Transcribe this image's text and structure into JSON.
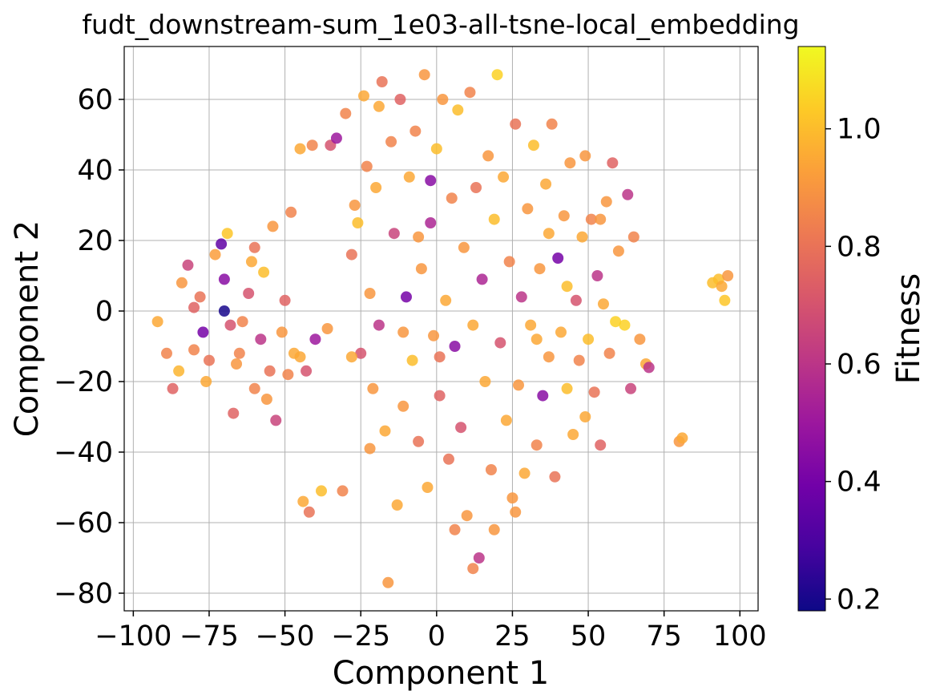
{
  "chart_data": {
    "type": "scatter",
    "title": "fudt_downstream-sum_1e03-all-tsne-local_embedding",
    "xlabel": "Component 1",
    "ylabel": "Component 2",
    "xlim": [
      -103,
      106
    ],
    "ylim": [
      -85,
      75
    ],
    "xticks": [
      -100,
      -75,
      -50,
      -25,
      0,
      25,
      50,
      75,
      100
    ],
    "xtick_labels": [
      "−100",
      "−75",
      "−50",
      "−25",
      "0",
      "25",
      "50",
      "75",
      "100"
    ],
    "yticks": [
      -80,
      -60,
      -40,
      -20,
      0,
      20,
      40,
      60
    ],
    "ytick_labels": [
      "−80",
      "−60",
      "−40",
      "−20",
      "0",
      "20",
      "40",
      "60"
    ],
    "grid": true,
    "colormap": "plasma",
    "point_alpha": 0.85,
    "colorbar": {
      "label": "Fitness",
      "range": [
        0.18,
        1.14
      ],
      "ticks": [
        0.2,
        0.4,
        0.6,
        0.8,
        1.0
      ],
      "tick_labels": [
        "0.2",
        "0.4",
        "0.6",
        "0.8",
        "1.0"
      ],
      "stops": [
        "#0d0887",
        "#46039f",
        "#7201a8",
        "#9c179e",
        "#bd3786",
        "#d8576b",
        "#ed7953",
        "#fb9f3a",
        "#fdca26",
        "#f0f921"
      ]
    },
    "points": [
      {
        "x": -92,
        "y": -3,
        "v": 0.95
      },
      {
        "x": -89,
        "y": -12,
        "v": 0.85
      },
      {
        "x": -87,
        "y": -22,
        "v": 0.75
      },
      {
        "x": -85,
        "y": -17,
        "v": 0.98
      },
      {
        "x": -84,
        "y": 8,
        "v": 0.9
      },
      {
        "x": -82,
        "y": 13,
        "v": 0.65
      },
      {
        "x": -80,
        "y": -11,
        "v": 0.85
      },
      {
        "x": -78,
        "y": 4,
        "v": 0.8
      },
      {
        "x": -77,
        "y": -6,
        "v": 0.4
      },
      {
        "x": -76,
        "y": -20,
        "v": 0.95
      },
      {
        "x": -75,
        "y": -14,
        "v": 0.8
      },
      {
        "x": -73,
        "y": 16,
        "v": 0.92
      },
      {
        "x": -71,
        "y": 19,
        "v": 0.35
      },
      {
        "x": -70,
        "y": 9,
        "v": 0.45
      },
      {
        "x": -69,
        "y": 22,
        "v": 1.02
      },
      {
        "x": -68,
        "y": -4,
        "v": 0.7
      },
      {
        "x": -67,
        "y": -29,
        "v": 0.75
      },
      {
        "x": -66,
        "y": -15,
        "v": 0.9
      },
      {
        "x": -64,
        "y": -3,
        "v": 0.85
      },
      {
        "x": -62,
        "y": 5,
        "v": 0.7
      },
      {
        "x": -61,
        "y": 14,
        "v": 0.95
      },
      {
        "x": -60,
        "y": -22,
        "v": 0.85
      },
      {
        "x": -58,
        "y": -8,
        "v": 0.6
      },
      {
        "x": -57,
        "y": 11,
        "v": 1.0
      },
      {
        "x": -55,
        "y": -17,
        "v": 0.8
      },
      {
        "x": -54,
        "y": 24,
        "v": 0.9
      },
      {
        "x": -53,
        "y": -31,
        "v": 0.65
      },
      {
        "x": -51,
        "y": -6,
        "v": 0.9
      },
      {
        "x": -50,
        "y": 3,
        "v": 0.75
      },
      {
        "x": -49,
        "y": -18,
        "v": 0.85
      },
      {
        "x": -47,
        "y": -12,
        "v": 0.95
      },
      {
        "x": -45,
        "y": 46,
        "v": 0.95
      },
      {
        "x": -44,
        "y": -54,
        "v": 0.95
      },
      {
        "x": -43,
        "y": -17,
        "v": 0.7
      },
      {
        "x": -42,
        "y": -57,
        "v": 0.8
      },
      {
        "x": -41,
        "y": 47,
        "v": 0.85
      },
      {
        "x": -40,
        "y": -8,
        "v": 0.5
      },
      {
        "x": -38,
        "y": -51,
        "v": 1.0
      },
      {
        "x": -35,
        "y": 47,
        "v": 0.7
      },
      {
        "x": -33,
        "y": 49,
        "v": 0.5
      },
      {
        "x": -31,
        "y": -51,
        "v": 0.85
      },
      {
        "x": -30,
        "y": 56,
        "v": 0.85
      },
      {
        "x": -28,
        "y": 16,
        "v": 0.8
      },
      {
        "x": -26,
        "y": 25,
        "v": 1.0
      },
      {
        "x": -25,
        "y": -12,
        "v": 0.7
      },
      {
        "x": -24,
        "y": 61,
        "v": 0.95
      },
      {
        "x": -23,
        "y": 41,
        "v": 0.85
      },
      {
        "x": -22,
        "y": 5,
        "v": 0.9
      },
      {
        "x": -21,
        "y": -22,
        "v": 0.9
      },
      {
        "x": -20,
        "y": 35,
        "v": 0.95
      },
      {
        "x": -19,
        "y": -4,
        "v": 0.6
      },
      {
        "x": -18,
        "y": 65,
        "v": 0.8
      },
      {
        "x": -17,
        "y": -34,
        "v": 0.95
      },
      {
        "x": -16,
        "y": -77,
        "v": 0.9
      },
      {
        "x": -15,
        "y": 48,
        "v": 0.85
      },
      {
        "x": -14,
        "y": 22,
        "v": 0.65
      },
      {
        "x": -13,
        "y": -55,
        "v": 0.95
      },
      {
        "x": -12,
        "y": 60,
        "v": 0.75
      },
      {
        "x": -11,
        "y": -27,
        "v": 0.9
      },
      {
        "x": -10,
        "y": 4,
        "v": 0.4
      },
      {
        "x": -9,
        "y": 38,
        "v": 0.95
      },
      {
        "x": -8,
        "y": -14,
        "v": 1.0
      },
      {
        "x": -7,
        "y": 51,
        "v": 0.85
      },
      {
        "x": -6,
        "y": -37,
        "v": 0.8
      },
      {
        "x": -5,
        "y": 12,
        "v": 0.9
      },
      {
        "x": -4,
        "y": 67,
        "v": 0.9
      },
      {
        "x": -3,
        "y": -50,
        "v": 0.95
      },
      {
        "x": -2,
        "y": 25,
        "v": 0.55
      },
      {
        "x": -1,
        "y": -7,
        "v": 0.9
      },
      {
        "x": 0,
        "y": 46,
        "v": 1.0
      },
      {
        "x": 1,
        "y": -24,
        "v": 0.75
      },
      {
        "x": 2,
        "y": 60,
        "v": 0.9
      },
      {
        "x": 3,
        "y": 3,
        "v": 0.95
      },
      {
        "x": 4,
        "y": -42,
        "v": 0.8
      },
      {
        "x": 5,
        "y": 32,
        "v": 0.85
      },
      {
        "x": 6,
        "y": -10,
        "v": 0.45
      },
      {
        "x": 7,
        "y": 57,
        "v": 1.0
      },
      {
        "x": 8,
        "y": -33,
        "v": 0.7
      },
      {
        "x": 9,
        "y": 18,
        "v": 0.9
      },
      {
        "x": 10,
        "y": -58,
        "v": 0.9
      },
      {
        "x": 11,
        "y": 62,
        "v": 0.85
      },
      {
        "x": 12,
        "y": -4,
        "v": 0.95
      },
      {
        "x": 13,
        "y": 35,
        "v": 0.8
      },
      {
        "x": 14,
        "y": -70,
        "v": 0.6
      },
      {
        "x": 15,
        "y": 9,
        "v": 0.55
      },
      {
        "x": 16,
        "y": -20,
        "v": 0.95
      },
      {
        "x": 17,
        "y": 44,
        "v": 0.9
      },
      {
        "x": 18,
        "y": -45,
        "v": 0.85
      },
      {
        "x": 19,
        "y": 26,
        "v": 1.0
      },
      {
        "x": 20,
        "y": 67,
        "v": 1.05
      },
      {
        "x": 21,
        "y": -9,
        "v": 0.7
      },
      {
        "x": 22,
        "y": 38,
        "v": 0.95
      },
      {
        "x": 23,
        "y": -31,
        "v": 0.95
      },
      {
        "x": 24,
        "y": 14,
        "v": 0.85
      },
      {
        "x": 25,
        "y": -53,
        "v": 0.9
      },
      {
        "x": 26,
        "y": 53,
        "v": 0.8
      },
      {
        "x": 27,
        "y": -21,
        "v": 0.9
      },
      {
        "x": 28,
        "y": 4,
        "v": 0.6
      },
      {
        "x": 29,
        "y": -46,
        "v": 0.95
      },
      {
        "x": 30,
        "y": 29,
        "v": 0.9
      },
      {
        "x": 31,
        "y": -4,
        "v": 0.95
      },
      {
        "x": 32,
        "y": 47,
        "v": 1.0
      },
      {
        "x": 33,
        "y": -38,
        "v": 0.85
      },
      {
        "x": 34,
        "y": 12,
        "v": 0.9
      },
      {
        "x": 35,
        "y": -24,
        "v": 0.45
      },
      {
        "x": 36,
        "y": 36,
        "v": 0.95
      },
      {
        "x": 37,
        "y": -13,
        "v": 0.9
      },
      {
        "x": 38,
        "y": 53,
        "v": 0.85
      },
      {
        "x": 39,
        "y": -47,
        "v": 0.8
      },
      {
        "x": 40,
        "y": 15,
        "v": 0.4
      },
      {
        "x": 41,
        "y": -6,
        "v": 0.95
      },
      {
        "x": 42,
        "y": 27,
        "v": 0.9
      },
      {
        "x": 43,
        "y": -22,
        "v": 1.0
      },
      {
        "x": 44,
        "y": 42,
        "v": 0.9
      },
      {
        "x": 45,
        "y": -35,
        "v": 0.95
      },
      {
        "x": 46,
        "y": 3,
        "v": 0.7
      },
      {
        "x": 47,
        "y": -14,
        "v": 0.85
      },
      {
        "x": 48,
        "y": 21,
        "v": 0.95
      },
      {
        "x": 49,
        "y": 44,
        "v": 0.9
      },
      {
        "x": 50,
        "y": -8,
        "v": 1.0
      },
      {
        "x": 51,
        "y": 26,
        "v": 0.85
      },
      {
        "x": 52,
        "y": -23,
        "v": 0.8
      },
      {
        "x": 53,
        "y": 10,
        "v": 0.6
      },
      {
        "x": 54,
        "y": -38,
        "v": 0.75
      },
      {
        "x": 55,
        "y": 2,
        "v": 0.95
      },
      {
        "x": 56,
        "y": 31,
        "v": 0.9
      },
      {
        "x": 57,
        "y": -12,
        "v": 0.85
      },
      {
        "x": 58,
        "y": 42,
        "v": 0.75
      },
      {
        "x": 59,
        "y": -3,
        "v": 1.05
      },
      {
        "x": 60,
        "y": 17,
        "v": 0.9
      },
      {
        "x": 62,
        "y": -4,
        "v": 1.05
      },
      {
        "x": 63,
        "y": 33,
        "v": 0.6
      },
      {
        "x": 64,
        "y": -22,
        "v": 0.65
      },
      {
        "x": 65,
        "y": 21,
        "v": 0.85
      },
      {
        "x": 67,
        "y": -8,
        "v": 0.9
      },
      {
        "x": 69,
        "y": -15,
        "v": 0.95
      },
      {
        "x": 70,
        "y": -16,
        "v": 0.6
      },
      {
        "x": 80,
        "y": -37,
        "v": 0.9
      },
      {
        "x": 81,
        "y": -36,
        "v": 0.95
      },
      {
        "x": 91,
        "y": 8,
        "v": 1.0
      },
      {
        "x": 93,
        "y": 9,
        "v": 1.0
      },
      {
        "x": 94,
        "y": 7,
        "v": 0.95
      },
      {
        "x": 95,
        "y": 3,
        "v": 1.02
      },
      {
        "x": 96,
        "y": 10,
        "v": 0.9
      },
      {
        "x": -70,
        "y": 0,
        "v": 0.2
      },
      {
        "x": -60,
        "y": 18,
        "v": 0.8
      },
      {
        "x": -56,
        "y": -25,
        "v": 0.9
      },
      {
        "x": -48,
        "y": 28,
        "v": 0.85
      },
      {
        "x": -36,
        "y": -5,
        "v": 0.9
      },
      {
        "x": -27,
        "y": 30,
        "v": 0.9
      },
      {
        "x": -19,
        "y": 58,
        "v": 0.95
      },
      {
        "x": -11,
        "y": -6,
        "v": 0.9
      },
      {
        "x": -6,
        "y": 21,
        "v": 0.9
      },
      {
        "x": 1,
        "y": -13,
        "v": 0.8
      },
      {
        "x": 6,
        "y": -62,
        "v": 0.85
      },
      {
        "x": 12,
        "y": -73,
        "v": 0.85
      },
      {
        "x": 19,
        "y": -62,
        "v": 0.9
      },
      {
        "x": 26,
        "y": -57,
        "v": 0.9
      },
      {
        "x": 33,
        "y": -8,
        "v": 0.95
      },
      {
        "x": 37,
        "y": 22,
        "v": 0.95
      },
      {
        "x": 43,
        "y": 7,
        "v": 1.0
      },
      {
        "x": 49,
        "y": -30,
        "v": 0.95
      },
      {
        "x": 54,
        "y": 26,
        "v": 0.9
      },
      {
        "x": -2,
        "y": 37,
        "v": 0.45
      },
      {
        "x": -22,
        "y": -39,
        "v": 0.9
      },
      {
        "x": -28,
        "y": -13,
        "v": 0.95
      },
      {
        "x": -45,
        "y": -13,
        "v": 0.95
      },
      {
        "x": -65,
        "y": -12,
        "v": 0.85
      },
      {
        "x": -80,
        "y": 1,
        "v": 0.75
      }
    ]
  }
}
